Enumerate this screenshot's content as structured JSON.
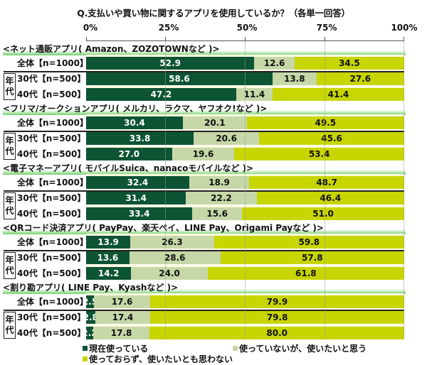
{
  "chart_data": {
    "type": "bar",
    "orientation": "horizontal",
    "stacked": true,
    "title": "Q.支払いや買い物に関するアプリを使用しているか？（各単一回答）",
    "xlabel": "",
    "ylabel": "",
    "xlim": [
      0,
      100
    ],
    "x_ticks": [
      "0%",
      "25%",
      "50%",
      "75%",
      "100%"
    ],
    "grid": true,
    "legend_position": "bottom",
    "series_names": [
      "現在使っている",
      "使っていないが、使いたいと思う",
      "使っておらず、使いたいとも思わない"
    ],
    "series_colors": [
      "#0c5434",
      "#c6d7a8",
      "#c7d500"
    ],
    "age_group_label": "年代",
    "groups": [
      {
        "name": "<ネット通販アプリ( Amazon、ZOZOTOWNなど )>",
        "rows": [
          {
            "label": "全体【n=1000】",
            "values": [
              52.9,
              12.6,
              34.5
            ]
          },
          {
            "label": "30代【n=500】",
            "values": [
              58.6,
              13.8,
              27.6
            ]
          },
          {
            "label": "40代【n=500】",
            "values": [
              47.2,
              11.4,
              41.4
            ]
          }
        ]
      },
      {
        "name": "<フリマ/オークションアプリ( メルカリ、ラクマ、ヤフオク!など )>",
        "rows": [
          {
            "label": "全体【n=1000】",
            "values": [
              30.4,
              20.1,
              49.5
            ]
          },
          {
            "label": "30代【n=500】",
            "values": [
              33.8,
              20.6,
              45.6
            ]
          },
          {
            "label": "40代【n=500】",
            "values": [
              27.0,
              19.6,
              53.4
            ]
          }
        ]
      },
      {
        "name": "<電子マネーアプリ( モバイルSuica、nanacoモバイルなど )>",
        "rows": [
          {
            "label": "全体【n=1000】",
            "values": [
              32.4,
              18.9,
              48.7
            ]
          },
          {
            "label": "30代【n=500】",
            "values": [
              31.4,
              22.2,
              46.4
            ]
          },
          {
            "label": "40代【n=500】",
            "values": [
              33.4,
              15.6,
              51.0
            ]
          }
        ]
      },
      {
        "name": "<QRコード決済アプリ( PayPay、楽天ペイ、LINE Pay、Origami Payなど )>",
        "rows": [
          {
            "label": "全体【n=1000】",
            "values": [
              13.9,
              26.3,
              59.8
            ]
          },
          {
            "label": "30代【n=500】",
            "values": [
              13.6,
              28.6,
              57.8
            ]
          },
          {
            "label": "40代【n=500】",
            "values": [
              14.2,
              24.0,
              61.8
            ]
          }
        ]
      },
      {
        "name": "<割り勘アプリ( LINE Pay、Kyashなど )>",
        "rows": [
          {
            "label": "全体【n=1000】",
            "values": [
              2.5,
              17.6,
              79.9
            ]
          },
          {
            "label": "30代【n=500】",
            "values": [
              2.8,
              17.4,
              79.8
            ]
          },
          {
            "label": "40代【n=500】",
            "values": [
              2.2,
              17.8,
              80.0
            ]
          }
        ]
      }
    ]
  },
  "title": "Q.支払いや買い物に関するアプリを使用しているか？（各単一回答）",
  "ticks": [
    "0%",
    "25%",
    "50%",
    "75%",
    "100%"
  ],
  "age_label_1": "年",
  "age_label_2": "代",
  "groups": [
    {
      "name": "<ネット通販アプリ( Amazon、ZOZOTOWNなど )>",
      "rows": [
        {
          "label": "全体【n=1000】",
          "a": "52.9",
          "b": "12.6",
          "c": "34.5",
          "va": 52.9,
          "vb": 12.6,
          "vc": 34.5
        },
        {
          "label": "30代【n=500】",
          "a": "58.6",
          "b": "13.8",
          "c": "27.6",
          "va": 58.6,
          "vb": 13.8,
          "vc": 27.6
        },
        {
          "label": "40代【n=500】",
          "a": "47.2",
          "b": "11.4",
          "c": "41.4",
          "va": 47.2,
          "vb": 11.4,
          "vc": 41.4
        }
      ]
    },
    {
      "name": "<フリマ/オークションアプリ( メルカリ、ラクマ、ヤフオク!など )>",
      "rows": [
        {
          "label": "全体【n=1000】",
          "a": "30.4",
          "b": "20.1",
          "c": "49.5",
          "va": 30.4,
          "vb": 20.1,
          "vc": 49.5
        },
        {
          "label": "30代【n=500】",
          "a": "33.8",
          "b": "20.6",
          "c": "45.6",
          "va": 33.8,
          "vb": 20.6,
          "vc": 45.6
        },
        {
          "label": "40代【n=500】",
          "a": "27.0",
          "b": "19.6",
          "c": "53.4",
          "va": 27.0,
          "vb": 19.6,
          "vc": 53.4
        }
      ]
    },
    {
      "name": "<電子マネーアプリ( モバイルSuica、nanacoモバイルなど )>",
      "rows": [
        {
          "label": "全体【n=1000】",
          "a": "32.4",
          "b": "18.9",
          "c": "48.7",
          "va": 32.4,
          "vb": 18.9,
          "vc": 48.7
        },
        {
          "label": "30代【n=500】",
          "a": "31.4",
          "b": "22.2",
          "c": "46.4",
          "va": 31.4,
          "vb": 22.2,
          "vc": 46.4
        },
        {
          "label": "40代【n=500】",
          "a": "33.4",
          "b": "15.6",
          "c": "51.0",
          "va": 33.4,
          "vb": 15.6,
          "vc": 51.0
        }
      ]
    },
    {
      "name": "<QRコード決済アプリ( PayPay、楽天ペイ、LINE Pay、Origami Payなど )>",
      "rows": [
        {
          "label": "全体【n=1000】",
          "a": "13.9",
          "b": "26.3",
          "c": "59.8",
          "va": 13.9,
          "vb": 26.3,
          "vc": 59.8
        },
        {
          "label": "30代【n=500】",
          "a": "13.6",
          "b": "28.6",
          "c": "57.8",
          "va": 13.6,
          "vb": 28.6,
          "vc": 57.8
        },
        {
          "label": "40代【n=500】",
          "a": "14.2",
          "b": "24.0",
          "c": "61.8",
          "va": 14.2,
          "vb": 24.0,
          "vc": 61.8
        }
      ]
    },
    {
      "name": "<割り勘アプリ( LINE Pay、Kyashなど )>",
      "rows": [
        {
          "label": "全体【n=1000】",
          "a": "2.5",
          "b": "17.6",
          "c": "79.9",
          "va": 2.5,
          "vb": 17.6,
          "vc": 79.9
        },
        {
          "label": "30代【n=500】",
          "a": "2.8",
          "b": "17.4",
          "c": "79.8",
          "va": 2.8,
          "vb": 17.4,
          "vc": 79.8
        },
        {
          "label": "40代【n=500】",
          "a": "2.2",
          "b": "17.8",
          "c": "80.0",
          "va": 2.2,
          "vb": 17.8,
          "vc": 80.0
        }
      ]
    }
  ],
  "legend": {
    "a": "現在使っている",
    "b": "使っていないが、使いたいと思う",
    "c": "使っておらず、使いたいとも思わない"
  }
}
